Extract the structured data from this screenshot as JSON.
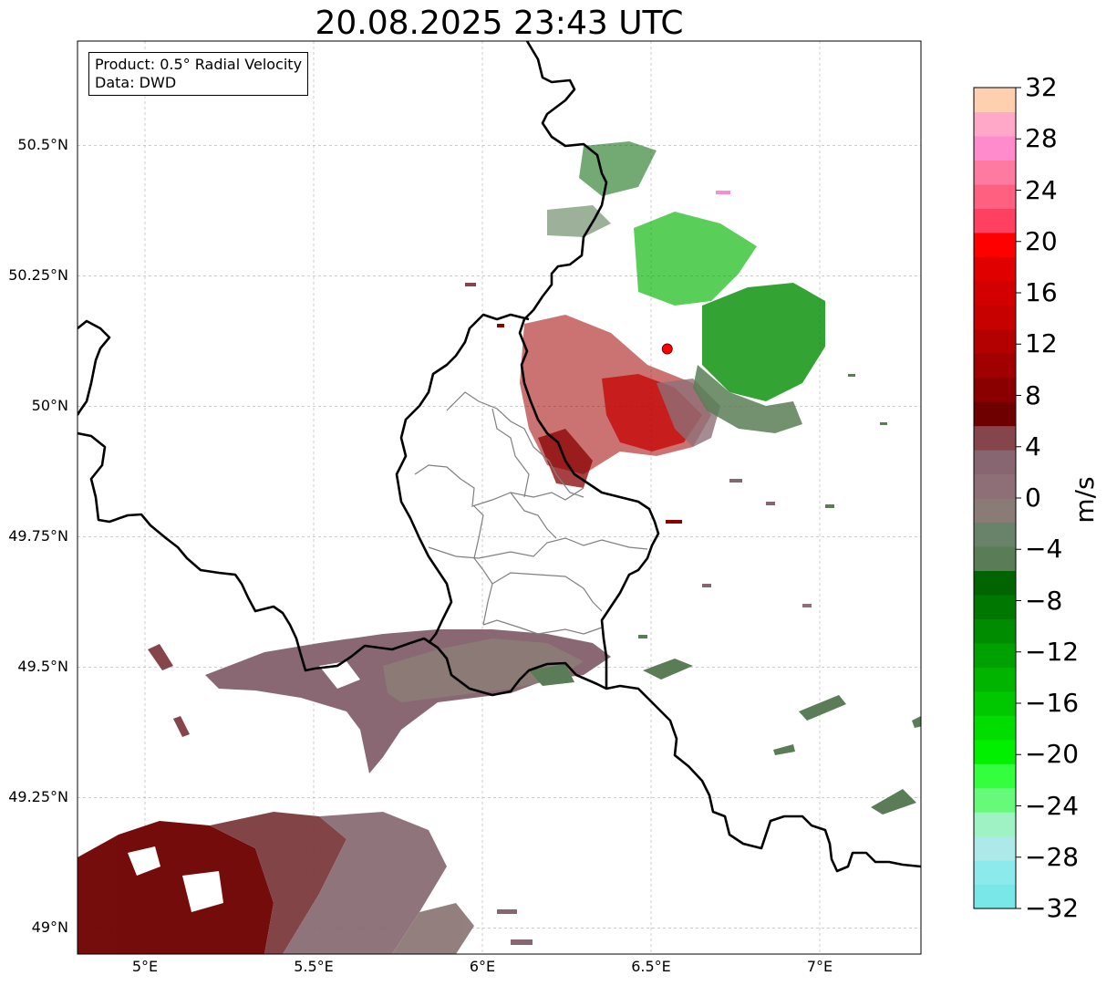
{
  "title": "20.08.2025 23:43 UTC",
  "info_box": {
    "product": "Product: 0.5° Radial Velocity",
    "data": "Data: DWD"
  },
  "map": {
    "lon_range": [
      4.8,
      7.3
    ],
    "lat_range": [
      48.95,
      50.7
    ],
    "lon_ticks": [
      {
        "value": 5.0,
        "label": "5°E"
      },
      {
        "value": 5.5,
        "label": "5.5°E"
      },
      {
        "value": 6.0,
        "label": "6°E"
      },
      {
        "value": 6.5,
        "label": "6.5°E"
      },
      {
        "value": 7.0,
        "label": "7°E"
      }
    ],
    "lat_ticks": [
      {
        "value": 49.0,
        "label": "49°N"
      },
      {
        "value": 49.25,
        "label": "49.25°N"
      },
      {
        "value": 49.5,
        "label": "49.5°N"
      },
      {
        "value": 49.75,
        "label": "49.75°N"
      },
      {
        "value": 50.0,
        "label": "50°N"
      },
      {
        "value": 50.25,
        "label": "50.25°N"
      },
      {
        "value": 50.5,
        "label": "50.5°N"
      }
    ],
    "grid": true,
    "radar_site": {
      "lon": 6.548,
      "lat": 50.11
    },
    "colors": {
      "border": "#000000",
      "admin": "#808080",
      "site_marker": "#ff0000"
    }
  },
  "colorbar": {
    "unit": "m/s",
    "min": -32,
    "max": 32,
    "tick_labels": [
      {
        "value": 32,
        "label": "32"
      },
      {
        "value": 28,
        "label": "28"
      },
      {
        "value": 24,
        "label": "24"
      },
      {
        "value": 20,
        "label": "20"
      },
      {
        "value": 16,
        "label": "16"
      },
      {
        "value": 12,
        "label": "12"
      },
      {
        "value": 8,
        "label": "8"
      },
      {
        "value": 4,
        "label": "4"
      },
      {
        "value": 0,
        "label": "0"
      },
      {
        "value": -4,
        "label": "−4"
      },
      {
        "value": -8,
        "label": "−8"
      },
      {
        "value": -12,
        "label": "−12"
      },
      {
        "value": -16,
        "label": "−16"
      },
      {
        "value": -20,
        "label": "−20"
      },
      {
        "value": -24,
        "label": "−24"
      },
      {
        "value": -28,
        "label": "−28"
      },
      {
        "value": -32,
        "label": "−32"
      }
    ],
    "bands": [
      "#79e6e8",
      "#8ce9ec",
      "#aee9ea",
      "#9ff2c4",
      "#66f97a",
      "#33ff3f",
      "#00f000",
      "#00dd00",
      "#00c800",
      "#00b400",
      "#00a000",
      "#008c00",
      "#007800",
      "#006400",
      "#5a7c56",
      "#68836a",
      "#8a7b76",
      "#8e6f78",
      "#886671",
      "#85454b",
      "#6e0000",
      "#8a0000",
      "#a00000",
      "#b30000",
      "#c70000",
      "#d20000",
      "#e00000",
      "#ff0000",
      "#ff4060",
      "#ff6080",
      "#ff7aa0",
      "#ff8acc",
      "#ffa8c8",
      "#ffd0b0"
    ]
  }
}
